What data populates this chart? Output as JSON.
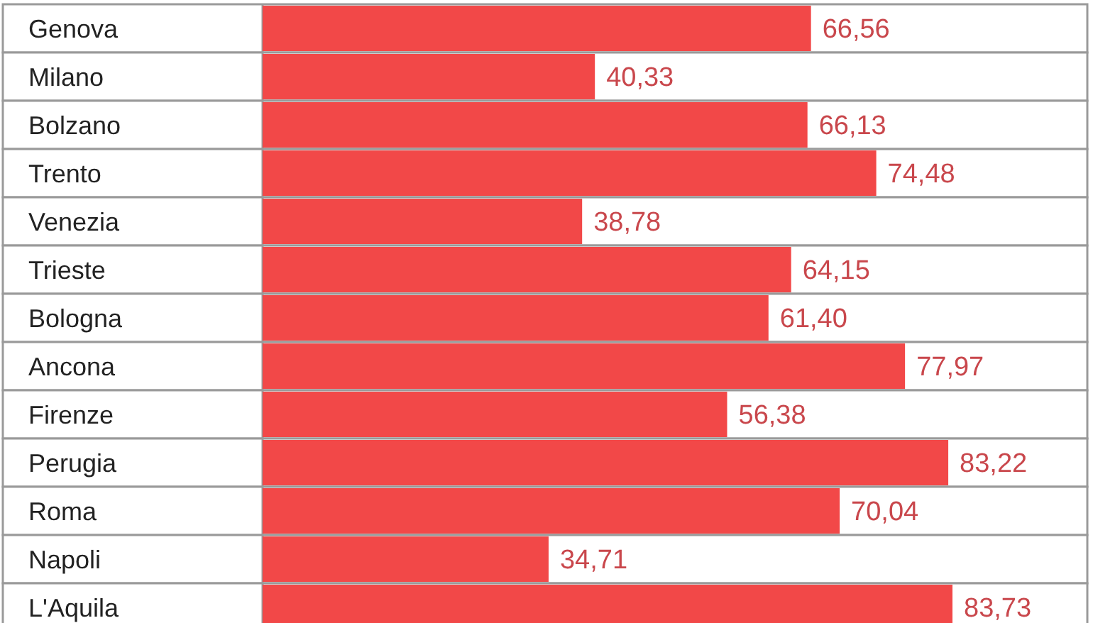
{
  "chart_data": {
    "type": "bar",
    "orientation": "horizontal",
    "categories": [
      "Genova",
      "Milano",
      "Bolzano",
      "Trento",
      "Venezia",
      "Trieste",
      "Bologna",
      "Ancona",
      "Firenze",
      "Perugia",
      "Roma",
      "Napoli",
      "L'Aquila"
    ],
    "values": [
      66.56,
      40.33,
      66.13,
      74.48,
      38.78,
      64.15,
      61.4,
      77.97,
      56.38,
      83.22,
      70.04,
      34.71,
      83.73
    ],
    "value_labels": [
      "66,56",
      "40,33",
      "66,13",
      "74,48",
      "38,78",
      "64,15",
      "61,40",
      "77,97",
      "56,38",
      "83,22",
      "70,04",
      "34,71",
      "83,73"
    ],
    "color": "#f24848",
    "data_labels": true
  }
}
